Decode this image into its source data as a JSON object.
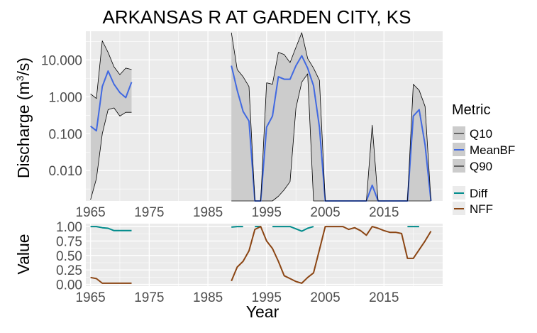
{
  "chart_data": [
    {
      "id": "discharge",
      "type": "line",
      "title": "ARKANSAS R AT GARDEN CITY, KS",
      "ylabel": "Discharge (m³/s)",
      "ylabel_base": "Discharge (m",
      "ylabel_sup": "3",
      "ylabel_tail": "/s)",
      "yscale": "log10",
      "ylim": [
        0.0015,
        60
      ],
      "xlim": [
        1964.2,
        2025
      ],
      "x_ticks": [
        1965,
        1975,
        1985,
        1995,
        2005,
        2015
      ],
      "x_tick_labels": [
        "1965",
        "1975",
        "1985",
        "1995",
        "2005",
        "2015"
      ],
      "y_ticks": [
        0.01,
        0.1,
        1,
        10
      ],
      "y_tick_labels": [
        "0.010",
        "0.100",
        "1.000",
        "10.000"
      ],
      "grid": true,
      "legend_title": "Metric",
      "series": [
        {
          "name": "Q10",
          "color": "#000000",
          "segments": [
            [
              [
                1965,
                0.0016
              ],
              [
                1966,
                0.006
              ],
              [
                1967,
                0.1
              ],
              [
                1968,
                0.45
              ],
              [
                1969,
                0.5
              ],
              [
                1970,
                0.3
              ],
              [
                1971,
                0.38
              ],
              [
                1972,
                0.38
              ]
            ],
            [
              [
                1989,
                0.0015
              ],
              [
                1993,
                0.0015
              ],
              [
                1995,
                0.0015
              ],
              [
                1996,
                0.0015
              ],
              [
                1997,
                0.002
              ],
              [
                1998,
                0.003
              ],
              [
                1999,
                0.005
              ],
              [
                2000,
                0.5
              ],
              [
                2001,
                2.5
              ],
              [
                2002,
                4.2
              ],
              [
                2003,
                0.0015
              ],
              [
                2004,
                0.0015
              ],
              [
                2005,
                0.0015
              ],
              [
                2023,
                0.0015
              ]
            ]
          ]
        },
        {
          "name": "MeanBF",
          "color": "#4169e1",
          "segments": [
            [
              [
                1965,
                0.16
              ],
              [
                1966,
                0.12
              ],
              [
                1967,
                1.9
              ],
              [
                1968,
                5.0
              ],
              [
                1969,
                2.2
              ],
              [
                1970,
                1.3
              ],
              [
                1971,
                0.95
              ],
              [
                1972,
                2.5
              ]
            ],
            [
              [
                1989,
                7.0
              ],
              [
                1990,
                1.5
              ],
              [
                1991,
                0.4
              ],
              [
                1992,
                0.22
              ],
              [
                1993,
                0.0015
              ],
              [
                1994,
                0.0015
              ],
              [
                1995,
                0.15
              ],
              [
                1996,
                0.3
              ],
              [
                1997,
                3.5
              ],
              [
                1998,
                3.0
              ],
              [
                1999,
                3.0
              ],
              [
                2000,
                7.0
              ],
              [
                2001,
                13.0
              ],
              [
                2002,
                6.0
              ],
              [
                2003,
                2.0
              ],
              [
                2004,
                0.15
              ],
              [
                2005,
                0.0015
              ],
              [
                2006,
                0.0015
              ],
              [
                2012,
                0.0015
              ],
              [
                2013,
                0.004
              ],
              [
                2014,
                0.0015
              ],
              [
                2019,
                0.0015
              ],
              [
                2020,
                0.3
              ],
              [
                2021,
                0.45
              ],
              [
                2022,
                0.05
              ],
              [
                2023,
                0.0015
              ]
            ]
          ]
        },
        {
          "name": "Q90",
          "color": "#000000",
          "segments": [
            [
              [
                1965,
                1.2
              ],
              [
                1966,
                0.9
              ],
              [
                1967,
                33.0
              ],
              [
                1968,
                16.0
              ],
              [
                1969,
                6.5
              ],
              [
                1970,
                4.0
              ],
              [
                1971,
                6.0
              ],
              [
                1972,
                5.5
              ]
            ],
            [
              [
                1989,
                55.0
              ],
              [
                1990,
                5.5
              ],
              [
                1991,
                3.5
              ],
              [
                1992,
                1.9
              ],
              [
                1993,
                0.0015
              ],
              [
                1994,
                0.0015
              ],
              [
                1995,
                2.4
              ],
              [
                1996,
                2.2
              ],
              [
                1997,
                16.0
              ],
              [
                1998,
                14.0
              ],
              [
                1999,
                8.5
              ],
              [
                2000,
                22.0
              ],
              [
                2001,
                55.0
              ],
              [
                2002,
                11.0
              ],
              [
                2003,
                6.0
              ],
              [
                2004,
                2.8
              ],
              [
                2005,
                0.0015
              ],
              [
                2006,
                0.0015
              ],
              [
                2012,
                0.0015
              ],
              [
                2013,
                0.17
              ],
              [
                2014,
                0.0015
              ],
              [
                2019,
                0.0015
              ],
              [
                2020,
                2.2
              ],
              [
                2021,
                1.5
              ],
              [
                2022,
                0.55
              ],
              [
                2023,
                0.0015
              ]
            ]
          ]
        }
      ]
    },
    {
      "id": "value",
      "type": "line",
      "xlabel": "Year",
      "ylabel": "Value",
      "ylim": [
        -0.03,
        1.05
      ],
      "xlim": [
        1964.2,
        2025
      ],
      "x_ticks": [
        1965,
        1975,
        1985,
        1995,
        2005,
        2015
      ],
      "x_tick_labels": [
        "1965",
        "1975",
        "1985",
        "1995",
        "2005",
        "2015"
      ],
      "y_ticks": [
        0,
        0.25,
        0.5,
        0.75,
        1.0
      ],
      "y_tick_labels": [
        "0.00",
        "0.25",
        "0.50",
        "0.75",
        "1.00"
      ],
      "grid": true,
      "series": [
        {
          "name": "Diff",
          "color": "#008b8b",
          "segments": [
            [
              [
                1965,
                1.0
              ],
              [
                1966,
                1.0
              ],
              [
                1967,
                0.98
              ],
              [
                1968,
                0.97
              ],
              [
                1969,
                0.93
              ],
              [
                1970,
                0.93
              ],
              [
                1971,
                0.93
              ],
              [
                1972,
                0.93
              ]
            ],
            [
              [
                1989,
                0.99
              ],
              [
                1990,
                1.0
              ],
              [
                1991,
                1.0
              ]
            ],
            [
              [
                1993,
                1.0
              ],
              [
                1994,
                1.0
              ]
            ],
            [
              [
                1996,
                1.0
              ],
              [
                1997,
                1.0
              ],
              [
                1998,
                1.0
              ],
              [
                1999,
                1.0
              ],
              [
                2000,
                0.96
              ],
              [
                2001,
                0.92
              ],
              [
                2002,
                0.97
              ],
              [
                2003,
                1.0
              ]
            ],
            [
              [
                2019,
                1.0
              ],
              [
                2020,
                1.0
              ],
              [
                2021,
                1.0
              ]
            ]
          ]
        },
        {
          "name": "NFF",
          "color": "#8b4513",
          "segments": [
            [
              [
                1965,
                0.12
              ],
              [
                1966,
                0.1
              ],
              [
                1967,
                0.02
              ],
              [
                1968,
                0.02
              ],
              [
                1969,
                0.02
              ],
              [
                1970,
                0.02
              ],
              [
                1971,
                0.02
              ],
              [
                1972,
                0.02
              ]
            ],
            [
              [
                1989,
                0.06
              ],
              [
                1990,
                0.3
              ],
              [
                1991,
                0.4
              ],
              [
                1992,
                0.58
              ],
              [
                1993,
                0.95
              ],
              [
                1994,
                1.0
              ],
              [
                1995,
                0.75
              ],
              [
                1996,
                0.62
              ],
              [
                1997,
                0.4
              ],
              [
                1998,
                0.15
              ],
              [
                1999,
                0.1
              ],
              [
                2000,
                0.05
              ],
              [
                2001,
                0.02
              ],
              [
                2002,
                0.12
              ],
              [
                2003,
                0.2
              ],
              [
                2004,
                0.6
              ],
              [
                2005,
                1.0
              ],
              [
                2006,
                1.0
              ],
              [
                2007,
                1.0
              ],
              [
                2008,
                1.0
              ],
              [
                2009,
                0.95
              ],
              [
                2010,
                0.98
              ],
              [
                2011,
                0.93
              ],
              [
                2012,
                0.85
              ],
              [
                2013,
                1.0
              ],
              [
                2014,
                0.97
              ],
              [
                2015,
                0.93
              ],
              [
                2016,
                0.9
              ],
              [
                2017,
                0.9
              ],
              [
                2018,
                0.88
              ],
              [
                2019,
                0.45
              ],
              [
                2020,
                0.45
              ],
              [
                2021,
                0.6
              ],
              [
                2022,
                0.75
              ],
              [
                2023,
                0.92
              ]
            ]
          ]
        }
      ]
    }
  ],
  "legend": {
    "metric_title": "Metric",
    "metric_items": [
      {
        "label": "Q10",
        "color": "#000000"
      },
      {
        "label": "MeanBF",
        "color": "#4169e1"
      },
      {
        "label": "Q90",
        "color": "#000000"
      }
    ],
    "value_items": [
      {
        "label": "Diff",
        "color": "#008b8b"
      },
      {
        "label": "NFF",
        "color": "#8b4513"
      }
    ]
  },
  "colors": {
    "panel_bg": "#ebebeb",
    "grid_major": "#ffffff",
    "ribbon_fill": "#cccccc"
  }
}
